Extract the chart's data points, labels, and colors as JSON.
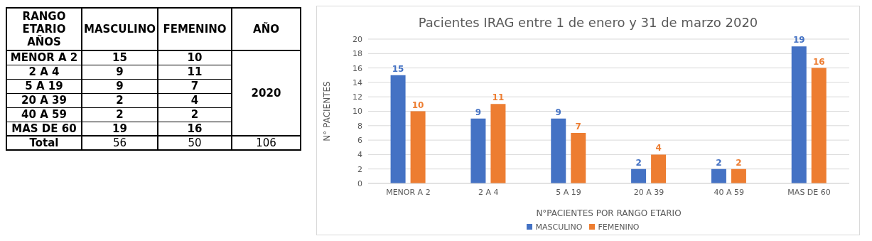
{
  "chart_data": [
    {
      "type": "other",
      "categories": [
        "MENOR A 2",
        "2 A 4",
        "5 A 19",
        "20 A 39",
        "40 A 59",
        "MAS DE 60"
      ],
      "series": [
        {
          "name": "MASCULINO",
          "values": [
            15,
            9,
            9,
            2,
            2,
            19
          ]
        },
        {
          "name": "FEMENINO",
          "values": [
            10,
            11,
            7,
            4,
            2,
            16
          ]
        }
      ],
      "annotations": [
        "RANGO ETARIO AÑOS",
        "AÑO",
        "2020",
        "Total",
        "56",
        "50",
        "106"
      ],
      "data_labels": true
    },
    {
      "type": "bar",
      "title": "Pacientes IRAG entre 1 de enero y 31 de marzo 2020",
      "xlabel": "N°PACIENTES POR RANGO ETARIO",
      "ylabel": "N° PACIENTES",
      "categories": [
        "MENOR A 2",
        "2 A 4",
        "5 A 19",
        "20 A 39",
        "40 A 59",
        "MAS DE 60"
      ],
      "series": [
        {
          "name": "MASCULINO",
          "color": "#4472c4",
          "values": [
            15,
            9,
            9,
            2,
            2,
            19
          ]
        },
        {
          "name": "FEMENINO",
          "color": "#ed7d31",
          "values": [
            10,
            11,
            7,
            4,
            2,
            16
          ]
        }
      ],
      "ylim": [
        0,
        20
      ],
      "yticks": [
        0,
        2,
        4,
        6,
        8,
        10,
        12,
        14,
        16,
        18,
        20
      ],
      "grid": "y",
      "legend": "bottom",
      "data_labels": true
    }
  ]
}
